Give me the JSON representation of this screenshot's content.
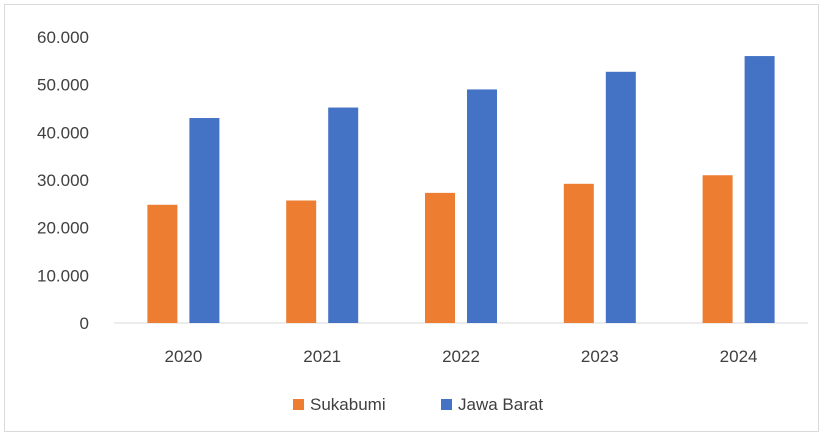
{
  "chart_data": {
    "type": "bar",
    "categories": [
      "2020",
      "2021",
      "2022",
      "2023",
      "2024"
    ],
    "series": [
      {
        "name": "Sukabumi",
        "values": [
          24800,
          25700,
          27300,
          29200,
          31000
        ],
        "color": "#ed7d31"
      },
      {
        "name": "Jawa Barat",
        "values": [
          43000,
          45200,
          49000,
          52700,
          56000
        ],
        "color": "#4472c4"
      }
    ],
    "y_ticks": [
      "0",
      "10.000",
      "20.000",
      "30.000",
      "40.000",
      "50.000",
      "60.000"
    ],
    "ylim": [
      0,
      60000
    ],
    "grid": false,
    "legend_position": "bottom"
  }
}
